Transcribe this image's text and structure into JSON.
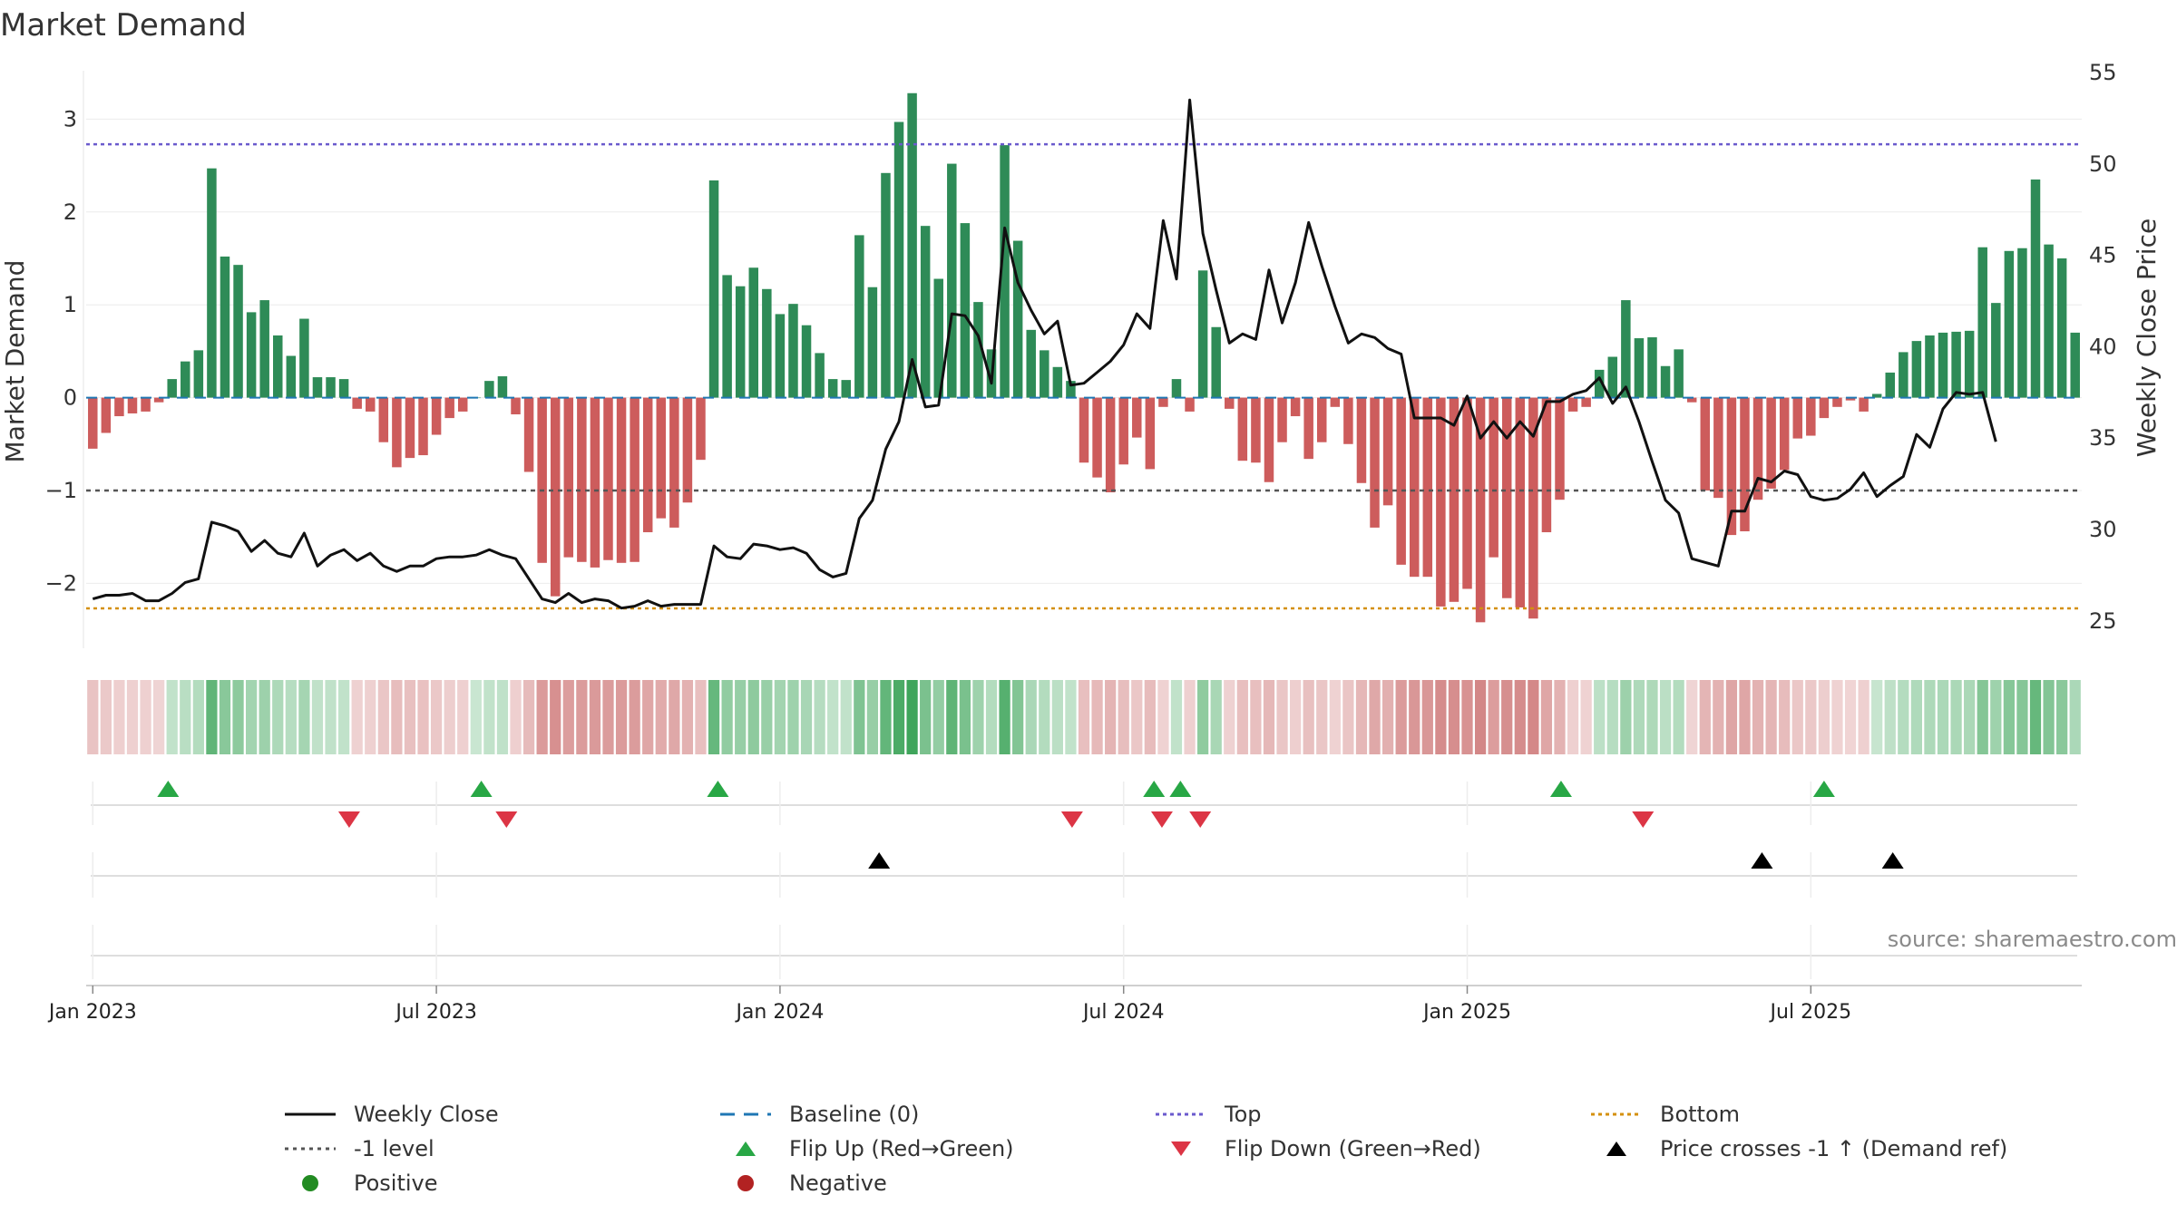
{
  "chart_data": {
    "type": "bar",
    "title": "Market Demand",
    "ylabel": "Market Demand",
    "y2label": "Weekly Close Price",
    "ylim": [
      -2.7,
      3.6
    ],
    "y2lim": [
      23.5,
      55.5
    ],
    "yticks": [
      "3",
      "2",
      "1",
      "0",
      "−1",
      "−2"
    ],
    "ytick_values": [
      3,
      2,
      1,
      0,
      -1,
      -2
    ],
    "y2ticks": [
      "55",
      "50",
      "45",
      "40",
      "35",
      "30",
      "25"
    ],
    "y2tick_values": [
      55,
      50,
      45,
      40,
      35,
      30,
      25
    ],
    "xticks": [
      "Jan 2023",
      "Jul 2023",
      "Jan 2024",
      "Jul 2024",
      "Jan 2025",
      "Jul 2025"
    ],
    "xtick_weeks": [
      0.5,
      26.5,
      52.5,
      78.5,
      104.5,
      130.5
    ],
    "reference_lines": {
      "top": 2.73,
      "bottom": -2.27,
      "minus_one": -1.0,
      "baseline": 0
    },
    "demand": [
      -0.55,
      -0.38,
      -0.2,
      -0.17,
      -0.15,
      -0.05,
      0.2,
      0.39,
      0.51,
      2.47,
      1.52,
      1.43,
      0.92,
      1.05,
      0.67,
      0.45,
      0.85,
      0.22,
      0.22,
      0.2,
      -0.12,
      -0.15,
      -0.48,
      -0.75,
      -0.65,
      -0.62,
      -0.4,
      -0.22,
      -0.15,
      0.0,
      0.18,
      0.23,
      -0.18,
      -0.8,
      -1.78,
      -2.14,
      -1.72,
      -1.77,
      -1.83,
      -1.75,
      -1.78,
      -1.77,
      -1.45,
      -1.3,
      -1.4,
      -1.13,
      -0.67,
      2.34,
      1.32,
      1.2,
      1.4,
      1.17,
      0.9,
      1.01,
      0.78,
      0.48,
      0.2,
      0.19,
      1.75,
      1.19,
      2.42,
      2.97,
      3.28,
      1.85,
      1.28,
      2.52,
      1.88,
      1.03,
      0.52,
      2.72,
      1.69,
      0.73,
      0.51,
      0.33,
      0.18,
      -0.7,
      -0.86,
      -1.02,
      -0.72,
      -0.43,
      -0.77,
      -0.1,
      0.2,
      -0.15,
      1.37,
      0.76,
      -0.12,
      -0.68,
      -0.7,
      -0.91,
      -0.48,
      -0.2,
      -0.66,
      -0.48,
      -0.1,
      -0.5,
      -0.92,
      -1.4,
      -1.16,
      -1.8,
      -1.93,
      -1.93,
      -2.25,
      -2.2,
      -2.06,
      -2.42,
      -1.72,
      -2.16,
      -2.26,
      -2.38,
      -1.45,
      -1.1,
      -0.15,
      -0.1,
      0.3,
      0.44,
      1.05,
      0.64,
      0.65,
      0.34,
      0.52,
      -0.05,
      -1.0,
      -1.08,
      -1.48,
      -1.44,
      -1.1,
      -0.98,
      -0.78,
      -0.44,
      -0.41,
      -0.22,
      -0.1,
      -0.03,
      -0.15,
      0.04,
      0.27,
      0.49,
      0.61,
      0.67,
      0.7,
      0.71,
      0.72,
      1.62,
      1.02,
      1.58,
      1.61,
      2.35,
      1.65,
      1.5,
      0.7
    ],
    "close": [
      26.2,
      26.4,
      26.4,
      26.5,
      26.1,
      26.1,
      26.5,
      27.1,
      27.3,
      30.4,
      30.2,
      29.9,
      28.8,
      29.4,
      28.7,
      28.5,
      29.8,
      28.0,
      28.6,
      28.9,
      28.3,
      28.7,
      28.0,
      27.7,
      28.0,
      28.0,
      28.4,
      28.5,
      28.5,
      28.6,
      28.9,
      28.6,
      28.4,
      27.3,
      26.2,
      26.0,
      26.5,
      26.0,
      26.2,
      26.1,
      25.7,
      25.8,
      26.1,
      25.8,
      25.9,
      25.9,
      25.9,
      29.1,
      28.5,
      28.4,
      29.2,
      29.1,
      28.9,
      29.0,
      28.7,
      27.8,
      27.4,
      27.6,
      30.6,
      31.6,
      34.4,
      35.9,
      39.3,
      36.7,
      36.8,
      41.8,
      41.7,
      40.6,
      38.0,
      46.5,
      43.5,
      42.0,
      40.7,
      41.4,
      37.9,
      38.0,
      38.6,
      39.2,
      40.1,
      41.8,
      41.0,
      46.9,
      43.7,
      53.5,
      46.2,
      43.1,
      40.2,
      40.7,
      40.4,
      44.2,
      41.3,
      43.5,
      46.8,
      44.4,
      42.2,
      40.2,
      40.7,
      40.5,
      39.9,
      39.6,
      36.1,
      36.1,
      36.1,
      35.7,
      37.3,
      35.0,
      35.9,
      35.0,
      35.9,
      35.1,
      37.0,
      37.0,
      37.4,
      37.6,
      38.3,
      36.9,
      37.8,
      35.9,
      33.7,
      31.6,
      30.9,
      28.4,
      28.2,
      28.0,
      31.0,
      31.0,
      32.8,
      32.6,
      33.2,
      33.0,
      31.8,
      31.6,
      31.7,
      32.2,
      33.1,
      31.8,
      32.4,
      32.9,
      35.2,
      34.5,
      36.6,
      37.5,
      37.4,
      37.5,
      34.8
    ],
    "flips_up_weeks": [
      6.2,
      29.9,
      47.8,
      80.8,
      82.8,
      111.6,
      131.5
    ],
    "flips_down_weeks": [
      19.9,
      31.8,
      74.6,
      81.4,
      84.3,
      117.8
    ],
    "price_cross_weeks": [
      60.0,
      126.8,
      136.7
    ]
  },
  "title": "Market Demand",
  "source": "source: sharemaestro.com",
  "colors": {
    "positive": "#2e8b57",
    "negative": "#cd5c5c",
    "close_line": "#111111",
    "baseline": "#1f77b4",
    "top": "#6a5acd",
    "bottom": "#d4900e",
    "minus_one": "#555555",
    "flip_up": "#28a745",
    "flip_down": "#dc3545",
    "cross": "#000000",
    "positive_dot": "#228b22",
    "negative_dot": "#b22222"
  },
  "legend": {
    "weekly_close": "Weekly Close",
    "baseline": "Baseline (0)",
    "top": "Top",
    "bottom": "Bottom",
    "minus_one": "-1 level",
    "flip_up": "Flip Up (Red→Green)",
    "flip_down": "Flip Down (Green→Red)",
    "price_cross": "Price crosses -1 ↑ (Demand ref)",
    "positive": "Positive",
    "negative": "Negative"
  }
}
